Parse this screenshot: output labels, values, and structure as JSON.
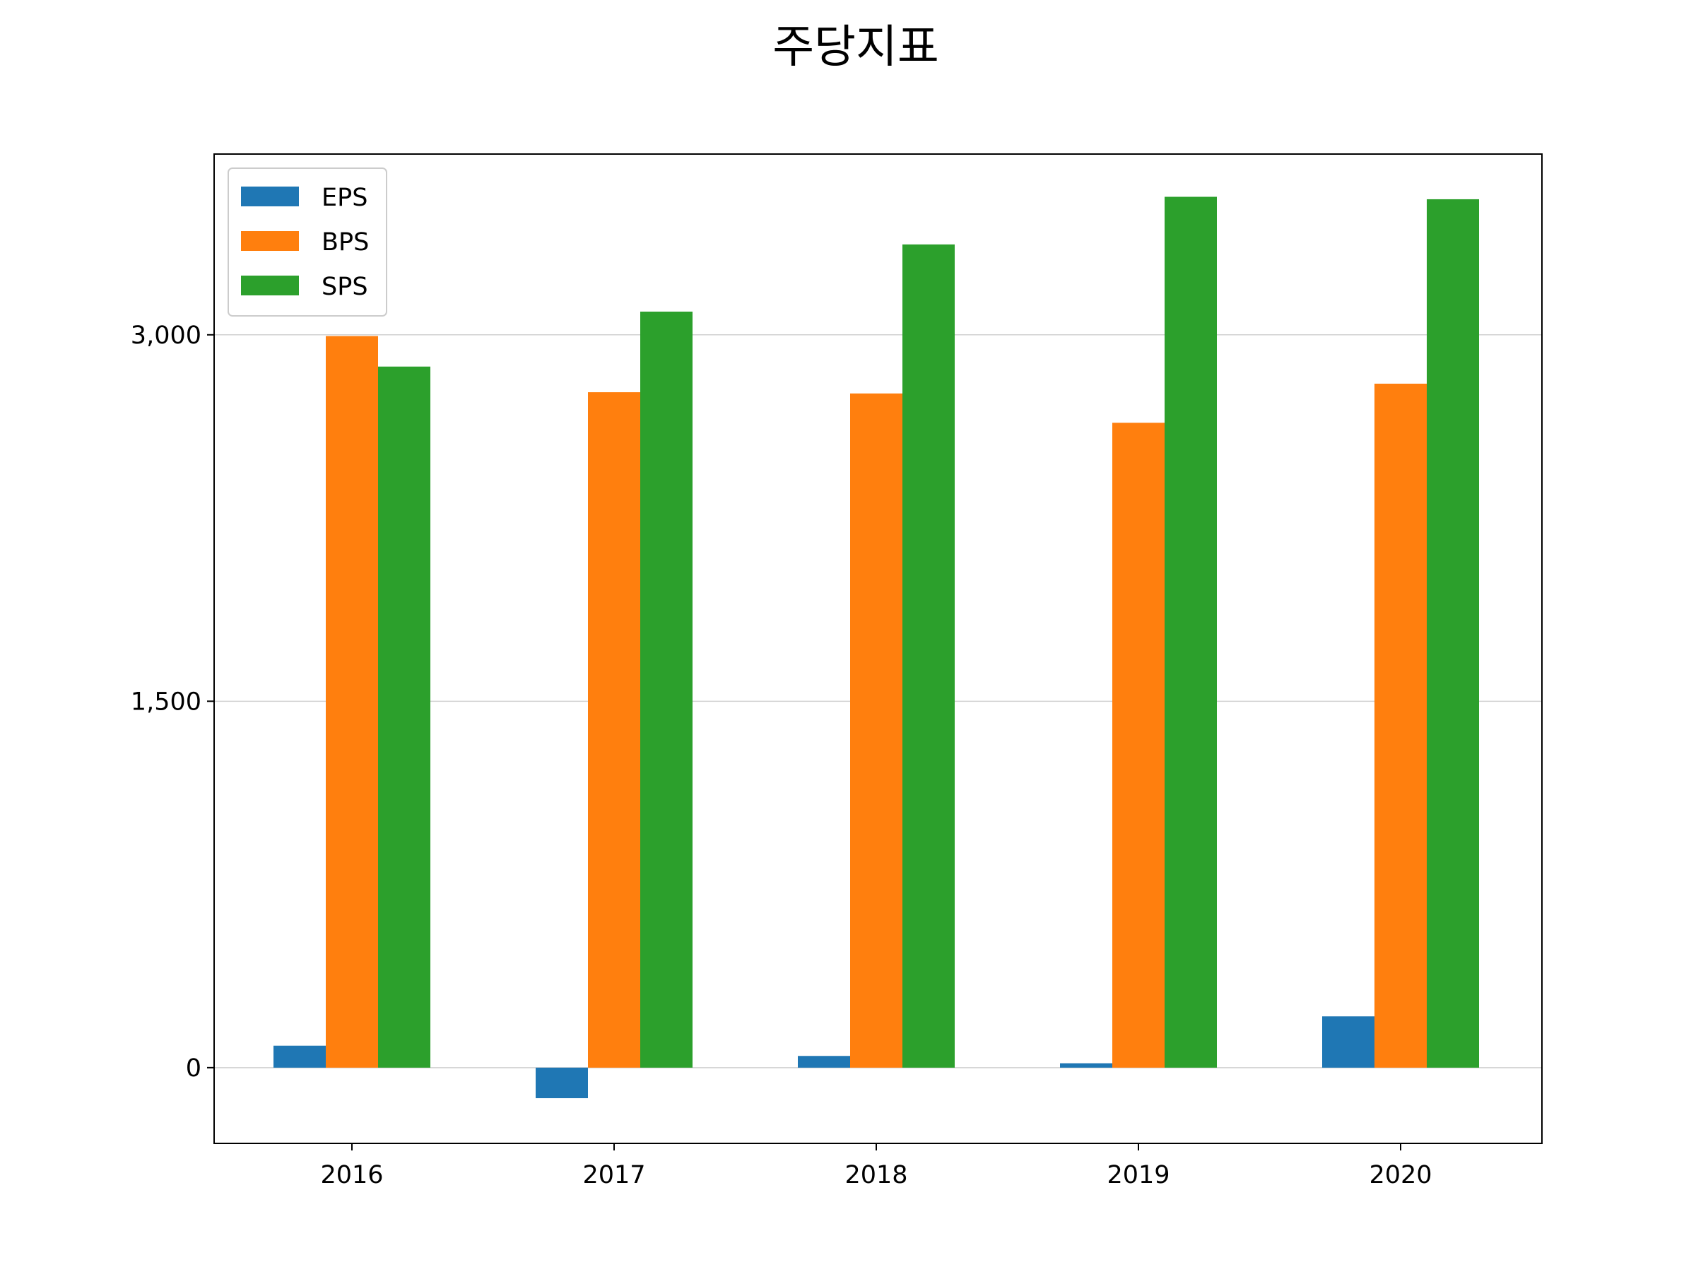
{
  "chart_data": {
    "type": "bar",
    "title": "주당지표",
    "xlabel": "",
    "ylabel": "",
    "categories": [
      "2016",
      "2017",
      "2018",
      "2019",
      "2020"
    ],
    "series": [
      {
        "name": "EPS",
        "color": "#1f77b4",
        "values": [
          90,
          -125,
          48,
          18,
          210
        ]
      },
      {
        "name": "BPS",
        "color": "#ff7f0e",
        "values": [
          2995,
          2765,
          2760,
          2640,
          2800
        ]
      },
      {
        "name": "SPS",
        "color": "#2ca02c",
        "values": [
          2870,
          3095,
          3370,
          3565,
          3555
        ]
      }
    ],
    "ylim": [
      -310,
      3740
    ],
    "yticks": [
      0,
      1500,
      3000
    ],
    "ytick_labels": [
      "0",
      "1,500",
      "3,000"
    ],
    "grid": {
      "axis": "y",
      "on": true
    },
    "legend": {
      "position": "upper-left"
    }
  }
}
